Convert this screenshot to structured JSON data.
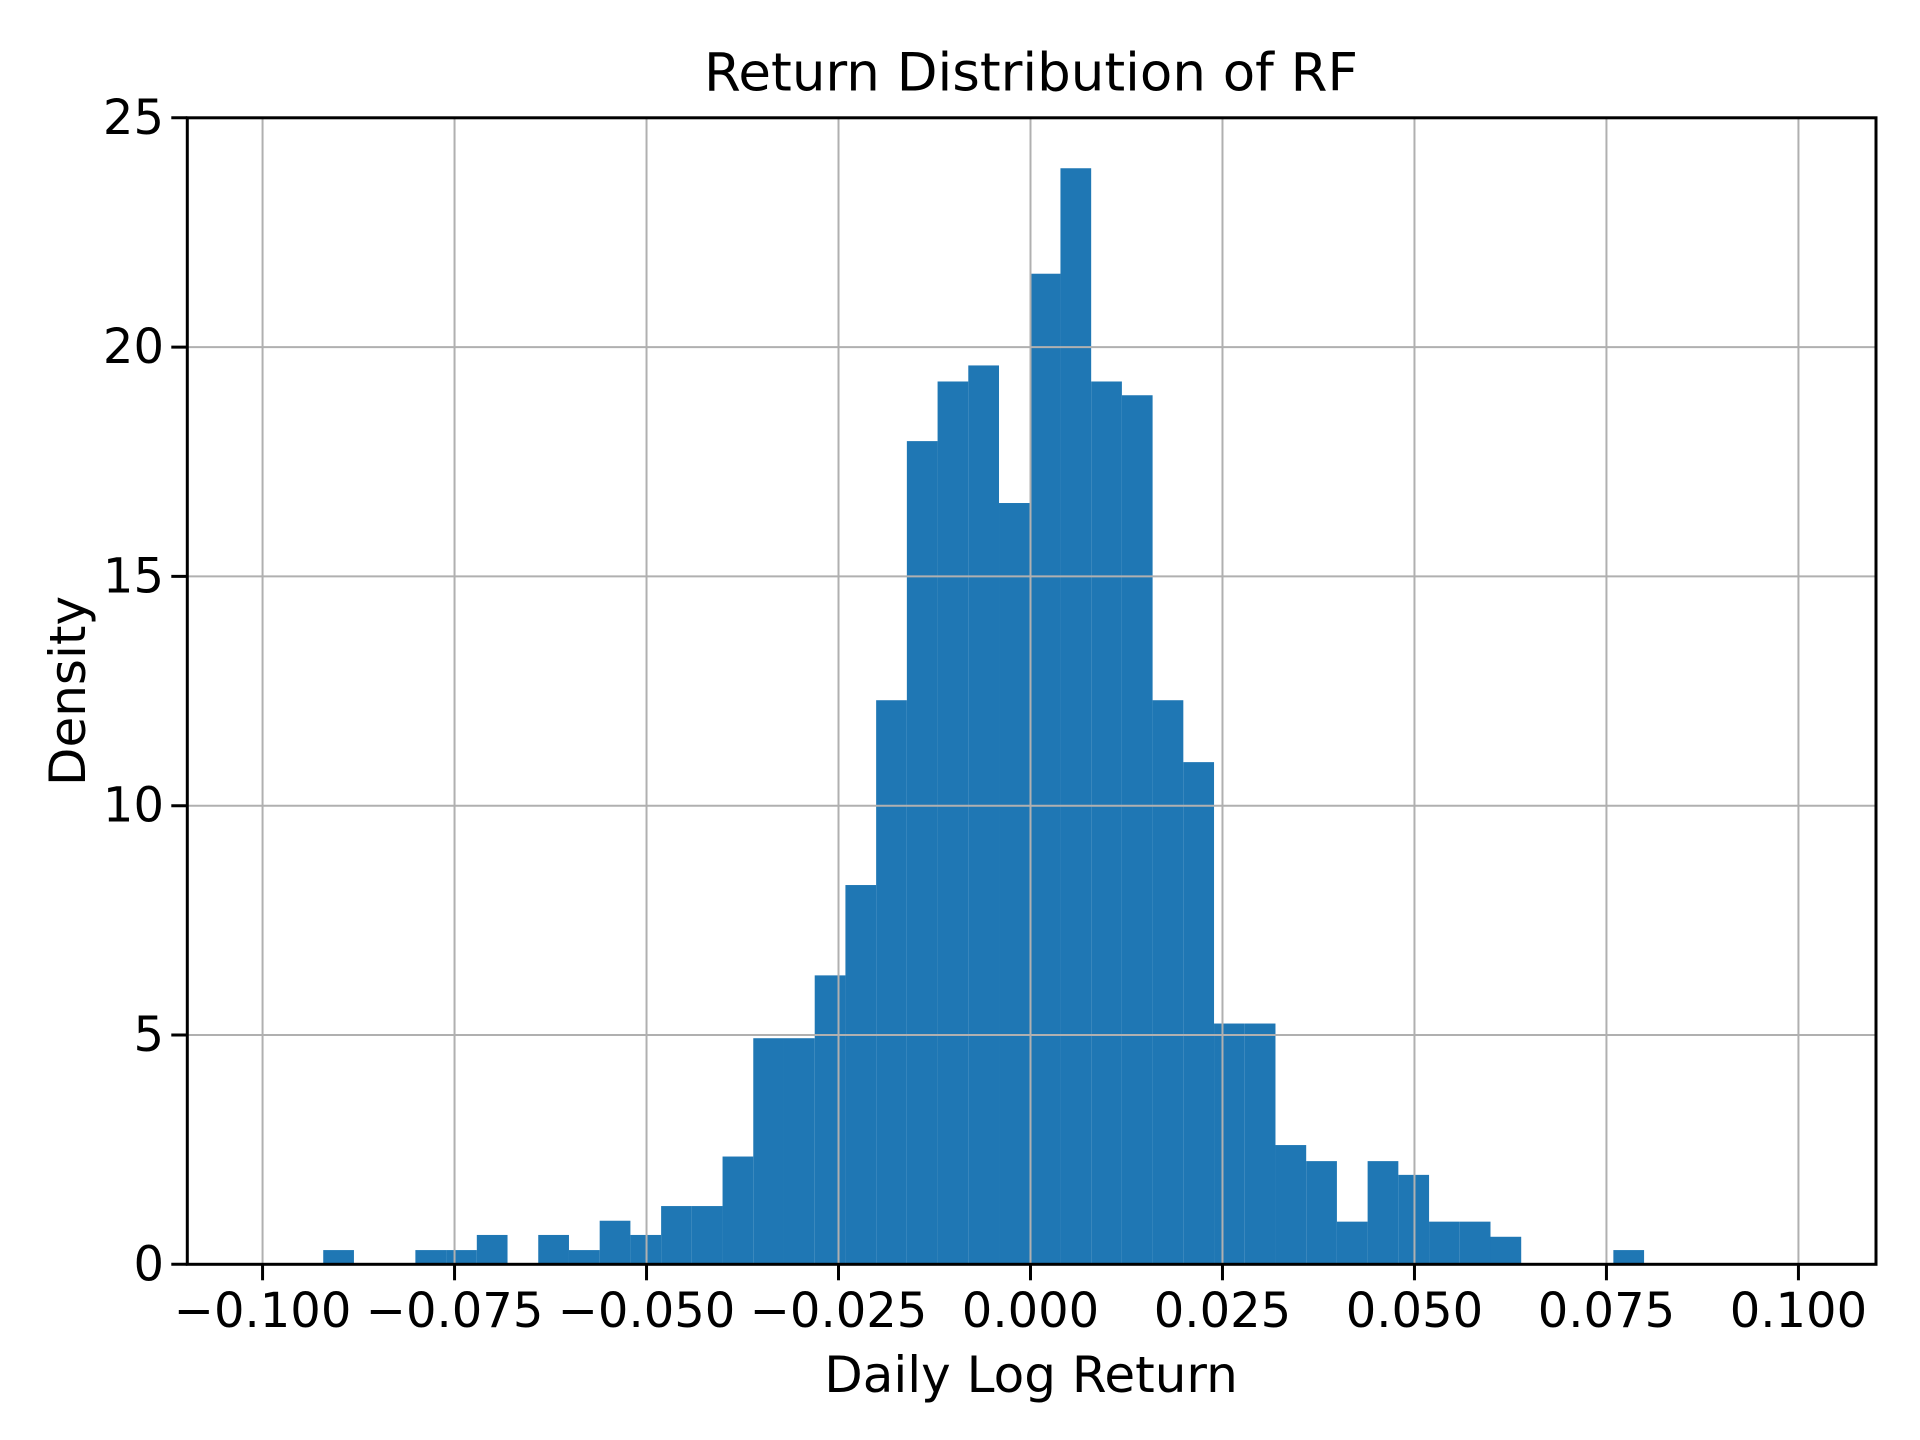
{
  "chart_data": {
    "type": "bar",
    "subtype": "histogram",
    "title": "Return Distribution of RF",
    "xlabel": "Daily Log Return",
    "ylabel": "Density",
    "bin_start": -0.0921,
    "bin_width": 0.004,
    "densities": [
      0.31,
      0,
      0,
      0.31,
      0.31,
      0.64,
      0,
      0.64,
      0.31,
      0.95,
      0.64,
      1.27,
      1.27,
      2.35,
      4.93,
      4.93,
      6.3,
      8.27,
      12.3,
      17.95,
      19.25,
      19.6,
      16.6,
      21.6,
      23.9,
      19.25,
      18.95,
      12.3,
      10.95,
      5.25,
      5.25,
      2.6,
      2.25,
      0.93,
      2.25,
      1.95,
      0.93,
      0.93,
      0.6,
      0,
      0,
      0,
      0.31
    ],
    "x_ticks": [
      -0.1,
      -0.075,
      -0.05,
      -0.025,
      0.0,
      0.025,
      0.05,
      0.075,
      0.1
    ],
    "x_tick_labels": [
      "−0.100",
      "−0.075",
      "−0.050",
      "−0.025",
      "0.000",
      "0.025",
      "0.050",
      "0.075",
      "0.100"
    ],
    "y_ticks": [
      0,
      5,
      10,
      15,
      20,
      25
    ],
    "y_tick_labels": [
      "0",
      "5",
      "10",
      "15",
      "20",
      "25"
    ],
    "xlim": [
      -0.1098,
      0.1101
    ],
    "ylim": [
      0,
      25
    ],
    "grid": true,
    "grid_above_bars": true,
    "legend": "none",
    "bar_color": "#1f77b4",
    "grid_color": "#b0b0b0",
    "axis_color": "#000000",
    "text_color": "#000000",
    "background": "#ffffff"
  }
}
